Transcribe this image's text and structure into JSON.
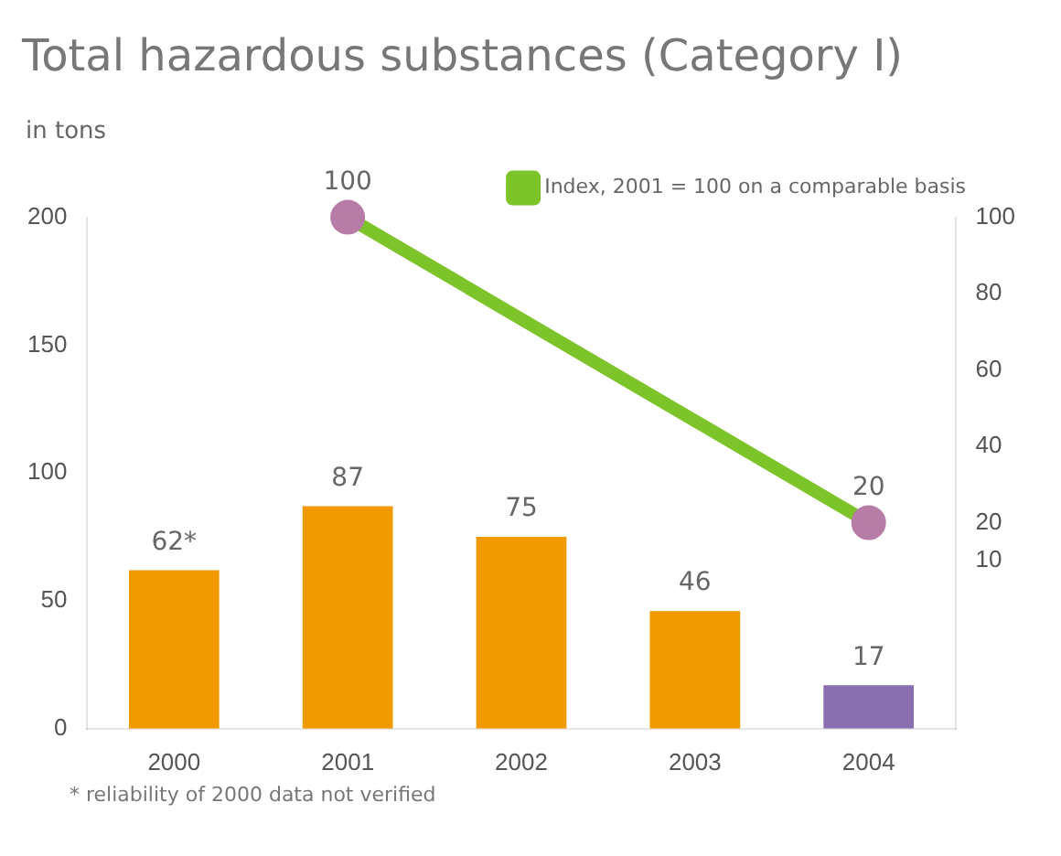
{
  "chart_data": {
    "type": "bar",
    "title": "Total hazardous substances (Category I)",
    "ylabel": "in tons",
    "categories": [
      "2000",
      "2001",
      "2002",
      "2003",
      "2004"
    ],
    "series": [
      {
        "colors": [
          "#f09a00",
          "#f09a00",
          "#f09a00",
          "#f09a00",
          "#8a6fb0"
        ],
        "values": [
          62,
          87,
          75,
          46,
          17
        ],
        "value_labels": [
          "62*",
          "87",
          "75",
          "46",
          "17"
        ]
      },
      {
        "type": "line",
        "name": "Index, 2001 = 100 on a comparable basis",
        "axis": "y2",
        "color": "#7dc42a",
        "marker": "circle",
        "values": [
          null,
          100,
          null,
          null,
          20
        ],
        "value_labels": [
          null,
          "100",
          null,
          null,
          "20"
        ]
      }
    ],
    "ylim": [
      0,
      200
    ],
    "yticks": [
      0,
      50,
      100,
      150,
      200
    ],
    "y2lim": [
      -34,
      100
    ],
    "y2ticks": [
      10,
      20,
      40,
      60,
      80,
      100
    ],
    "grid": false,
    "legend": "top right",
    "annotations": [
      "* reliability of 2000 data not verified"
    ]
  }
}
